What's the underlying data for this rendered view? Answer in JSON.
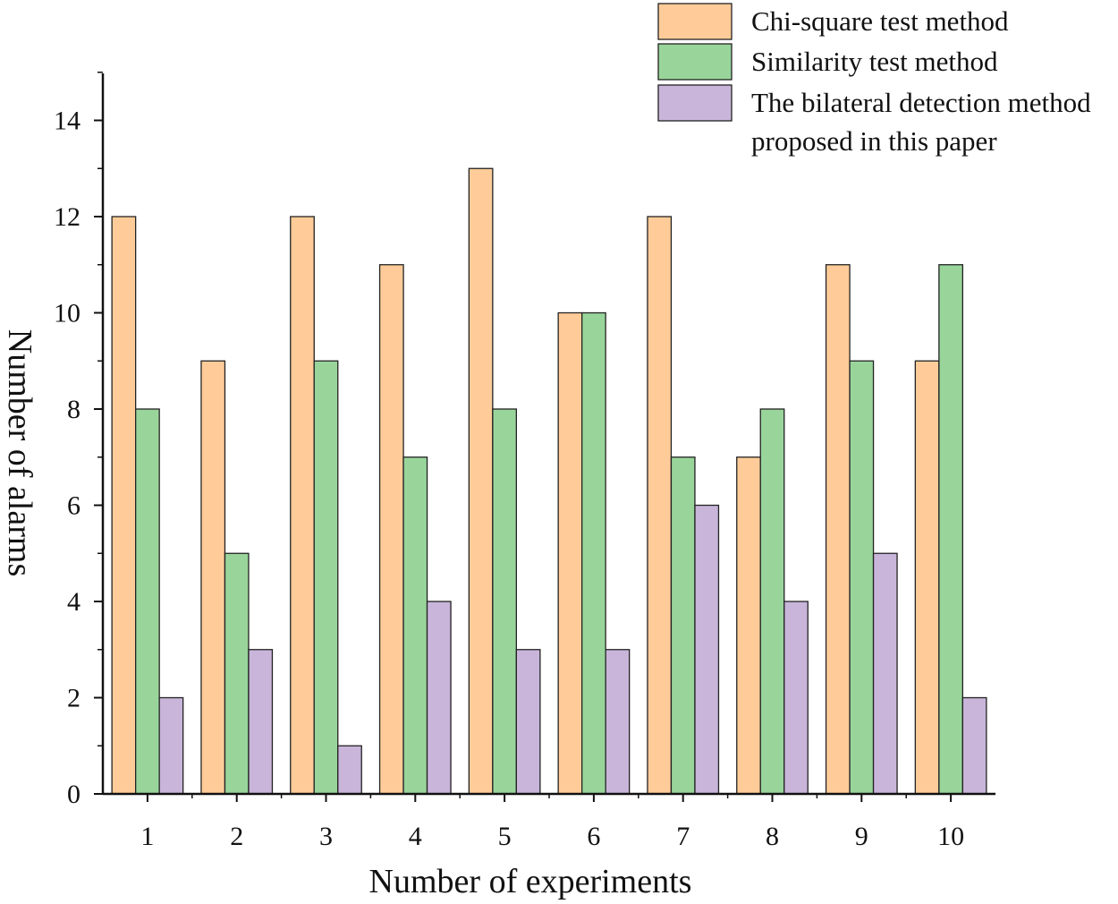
{
  "chart_data": {
    "type": "bar",
    "title": "",
    "xlabel": "Number of experiments",
    "ylabel": "Number of alarms",
    "categories": [
      "1",
      "2",
      "3",
      "4",
      "5",
      "6",
      "7",
      "8",
      "9",
      "10"
    ],
    "ylim": [
      0,
      15
    ],
    "yticks": [
      "0",
      "2",
      "4",
      "6",
      "8",
      "10",
      "12",
      "14"
    ],
    "grid": false,
    "legend_position": "top-right",
    "series": [
      {
        "name": "Chi-square test method",
        "color": "#FFCC99",
        "values": [
          12,
          9,
          12,
          11,
          13,
          10,
          12,
          7,
          11,
          9
        ]
      },
      {
        "name": "Similarity test method",
        "color": "#99D59B",
        "values": [
          8,
          5,
          9,
          7,
          8,
          10,
          7,
          8,
          9,
          11
        ]
      },
      {
        "name": "The bilateral detection method proposed in this paper",
        "color": "#C9B5DA",
        "values": [
          2,
          3,
          1,
          4,
          3,
          3,
          6,
          4,
          5,
          2
        ]
      }
    ],
    "legend_lines": [
      [
        "Chi-square test method"
      ],
      [
        "Similarity test method"
      ],
      [
        "The bilateral detection method",
        "proposed in this paper"
      ]
    ]
  }
}
